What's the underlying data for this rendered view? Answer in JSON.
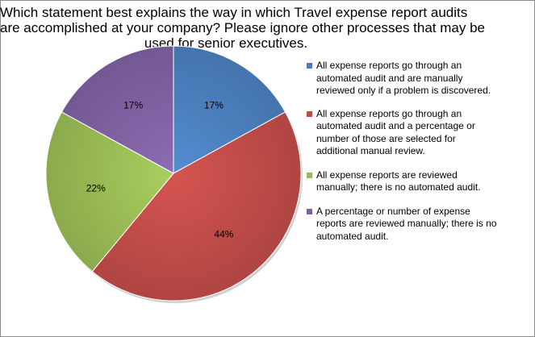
{
  "chart_data": {
    "type": "pie",
    "title_lines": [
      "Which statement best explains the way in which Travel expense report audits",
      "are accomplished at your company? Please ignore other processes that may be",
      "used for senior executives."
    ],
    "slices": [
      {
        "label_lines": [
          "All expense reports go through an",
          "automated audit and are manually",
          "reviewed only if a problem is discovered."
        ],
        "value": 17,
        "value_label": "17%",
        "color": "#4a7ebb"
      },
      {
        "label_lines": [
          "All expense reports go through an",
          "automated audit and a percentage or",
          "number of those are selected for",
          "additional manual review."
        ],
        "value": 44,
        "value_label": "44%",
        "color": "#be4b48"
      },
      {
        "label_lines": [
          "All expense reports are reviewed",
          "manually; there is no automated audit."
        ],
        "value": 22,
        "value_label": "22%",
        "color": "#98b954"
      },
      {
        "label_lines": [
          "A percentage or number of expense",
          "reports are reviewed manually; there is no",
          "automated audit."
        ],
        "value": 17,
        "value_label": "17%",
        "color": "#7d60a0"
      }
    ],
    "legend_position": "right"
  }
}
